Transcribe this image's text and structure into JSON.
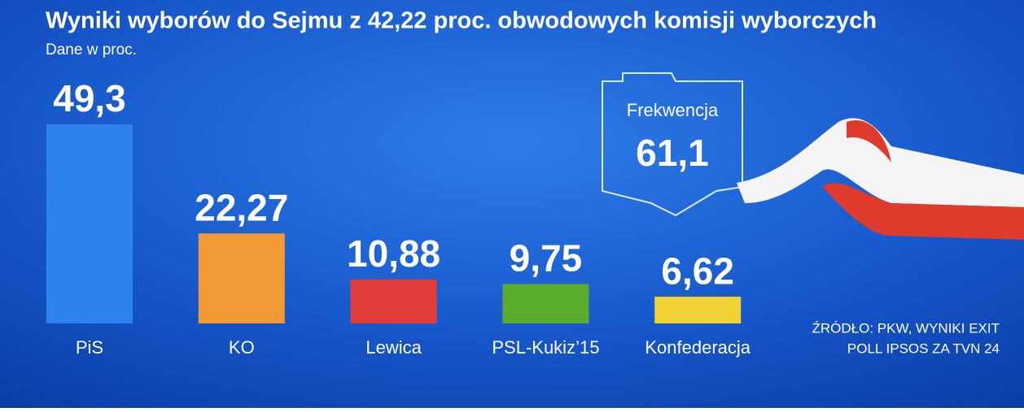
{
  "chart_data": {
    "type": "bar",
    "title": "Wyniki wyborów do Sejmu z 42,22 proc. obwodowych komisji wyborczych",
    "subtitle": "Dane w proc.",
    "categories": [
      "PiS",
      "KO",
      "Lewica",
      "PSL-Kukiz’15",
      "Konfederacja"
    ],
    "values": [
      49.3,
      22.27,
      10.88,
      9.75,
      6.62
    ],
    "value_labels": [
      "49,3",
      "22,27",
      "10,88",
      "9,75",
      "6,62"
    ],
    "colors": [
      "#2e82f0",
      "#f39a36",
      "#e03c3c",
      "#5aab2e",
      "#f1d234"
    ],
    "annotations": {
      "turnout_label": "Frekwencja",
      "turnout_value": "61,1"
    },
    "source": [
      "ŹRÓDŁO: PKW, WYNIKI EXIT",
      "POLL IPSOS ZA TVN 24"
    ]
  }
}
